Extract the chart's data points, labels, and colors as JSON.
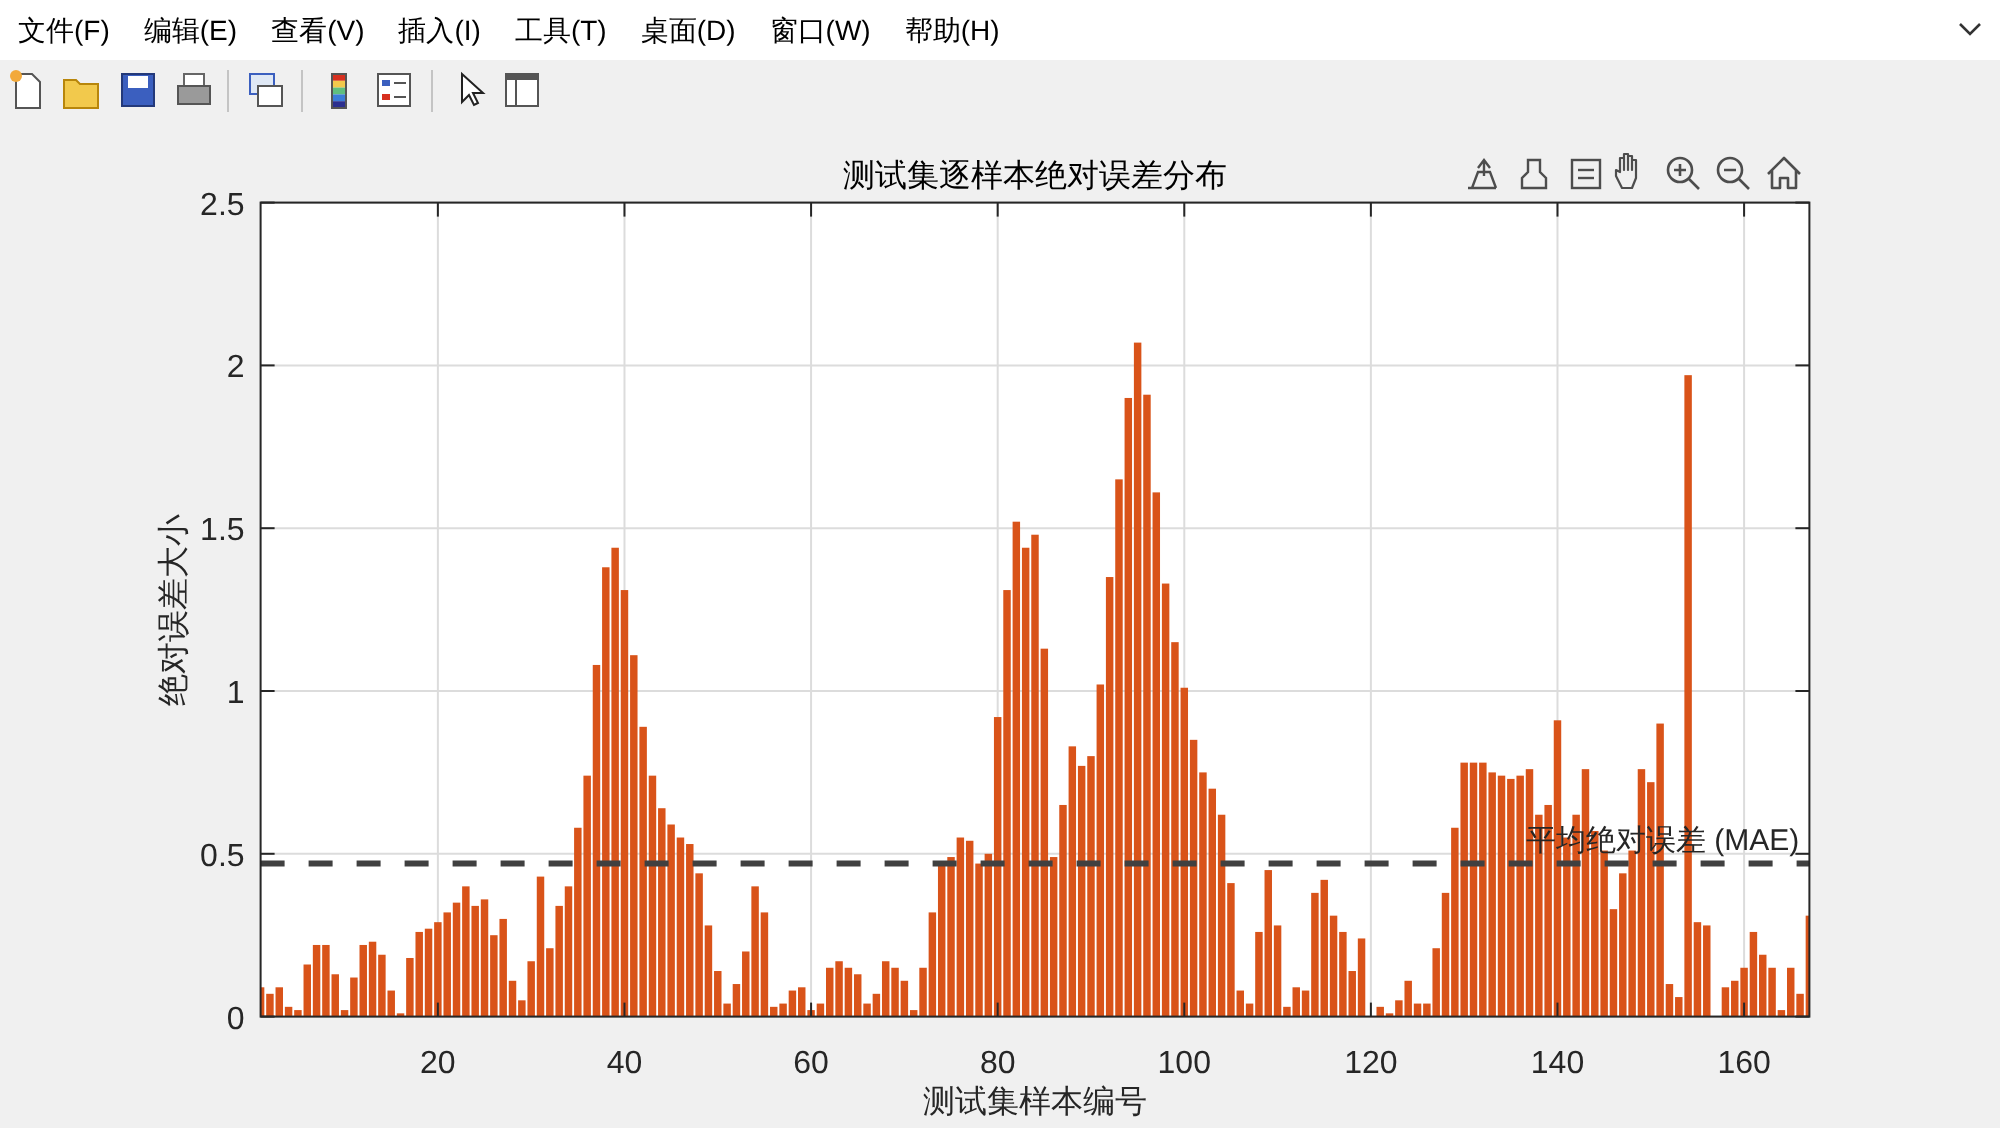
{
  "chart_data": {
    "type": "bar",
    "title": "测试集逐样本绝对误差分布",
    "xlabel": "测试集样本编号",
    "ylabel": "绝对误差大小",
    "x": [
      1,
      2,
      3,
      4,
      5,
      6,
      7,
      8,
      9,
      10,
      11,
      12,
      13,
      14,
      15,
      16,
      17,
      18,
      19,
      20,
      21,
      22,
      23,
      24,
      25,
      26,
      27,
      28,
      29,
      30,
      31,
      32,
      33,
      34,
      35,
      36,
      37,
      38,
      39,
      40,
      41,
      42,
      43,
      44,
      45,
      46,
      47,
      48,
      49,
      50,
      51,
      52,
      53,
      54,
      55,
      56,
      57,
      58,
      59,
      60,
      61,
      62,
      63,
      64,
      65,
      66,
      67,
      68,
      69,
      70,
      71,
      72,
      73,
      74,
      75,
      76,
      77,
      78,
      79,
      80,
      81,
      82,
      83,
      84,
      85,
      86,
      87,
      88,
      89,
      90,
      91,
      92,
      93,
      94,
      95,
      96,
      97,
      98,
      99,
      100,
      101,
      102,
      103,
      104,
      105,
      106,
      107,
      108,
      109,
      110,
      111,
      112,
      113,
      114,
      115,
      116,
      117,
      118,
      119,
      121,
      122,
      123,
      124,
      125,
      126,
      127,
      128,
      129,
      130,
      131,
      132,
      133,
      134,
      135,
      136,
      137,
      138,
      139,
      140,
      141,
      142,
      143,
      144,
      145,
      146,
      147,
      148,
      149,
      150,
      151,
      152,
      153,
      154,
      155,
      156,
      158,
      159,
      160,
      161,
      162,
      163,
      164,
      165,
      166,
      167
    ],
    "values": [
      0.09,
      0.07,
      0.09,
      0.03,
      0.02,
      0.16,
      0.22,
      0.22,
      0.13,
      0.02,
      0.12,
      0.22,
      0.23,
      0.19,
      0.08,
      0.01,
      0.18,
      0.26,
      0.27,
      0.29,
      0.32,
      0.35,
      0.4,
      0.34,
      0.36,
      0.25,
      0.3,
      0.11,
      0.05,
      0.17,
      0.43,
      0.21,
      0.34,
      0.4,
      0.58,
      0.74,
      1.08,
      1.38,
      1.44,
      1.31,
      1.11,
      0.89,
      0.74,
      0.64,
      0.59,
      0.55,
      0.53,
      0.44,
      0.28,
      0.14,
      0.04,
      0.1,
      0.2,
      0.4,
      0.32,
      0.03,
      0.04,
      0.08,
      0.09,
      0.02,
      0.04,
      0.15,
      0.17,
      0.15,
      0.13,
      0.04,
      0.07,
      0.17,
      0.15,
      0.11,
      0.02,
      0.15,
      0.32,
      0.47,
      0.49,
      0.55,
      0.54,
      0.47,
      0.5,
      0.92,
      1.31,
      1.52,
      1.44,
      1.48,
      1.13,
      0.49,
      0.65,
      0.83,
      0.77,
      0.8,
      1.02,
      1.35,
      1.65,
      1.9,
      2.07,
      1.91,
      1.61,
      1.33,
      1.15,
      1.01,
      0.85,
      0.75,
      0.7,
      0.62,
      0.41,
      0.08,
      0.04,
      0.26,
      0.45,
      0.28,
      0.03,
      0.09,
      0.08,
      0.38,
      0.42,
      0.31,
      0.26,
      0.14,
      0.24,
      0.03,
      0.01,
      0.05,
      0.11,
      0.04,
      0.04,
      0.21,
      0.38,
      0.58,
      0.78,
      0.78,
      0.78,
      0.75,
      0.74,
      0.73,
      0.74,
      0.76,
      0.62,
      0.65,
      0.91,
      0.55,
      0.62,
      0.76,
      0.57,
      0.51,
      0.33,
      0.44,
      0.51,
      0.76,
      0.72,
      0.9,
      0.1,
      0.06,
      1.97,
      0.29,
      0.28,
      0.09,
      0.11,
      0.15,
      0.26,
      0.19,
      0.15,
      0.02,
      0.15,
      0.07,
      0.31
    ],
    "color": "#d95319",
    "xlim": [
      1,
      167
    ],
    "xticks": [
      20,
      40,
      60,
      80,
      100,
      120,
      140,
      160
    ],
    "ylim": [
      0,
      2.5
    ],
    "yticks": [
      0,
      0.5,
      1,
      1.5,
      2,
      2.5
    ],
    "grid": true,
    "ref_lines": [
      {
        "axis": "y",
        "value": 0.47,
        "label": "平均绝对误差 (MAE)",
        "color": "#404040",
        "line_style": "dashed"
      }
    ],
    "annotations": [
      "文件(F)",
      "编辑(E)",
      "查看(V)",
      "插入(I)",
      "工具(T)",
      "桌面(D)",
      "窗口(W)",
      "帮助(H)"
    ]
  }
}
